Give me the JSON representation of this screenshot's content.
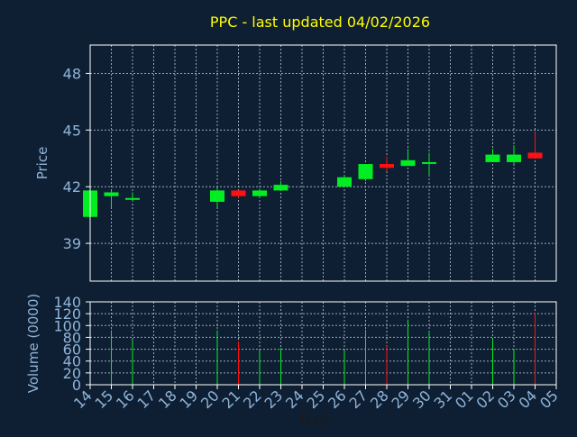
{
  "colors": {
    "background": "#0f1f33",
    "title": "#ffff00",
    "axis_text": "#8fb4d9",
    "frame": "#ffffff",
    "grid": "#9aa8b8",
    "up": "#00ee22",
    "down": "#ff1111"
  },
  "chart_data": [
    {
      "type": "candlestick",
      "title": "PPC - last updated 04/02/2026",
      "ylabel": "Price",
      "xlabel": "",
      "ylim": [
        37.0,
        49.5
      ],
      "yticks": [
        "39",
        "42",
        "45",
        "48"
      ],
      "grid": true,
      "categories": [
        "14",
        "15",
        "16",
        "17",
        "18",
        "19",
        "20",
        "21",
        "22",
        "23",
        "24",
        "25",
        "26",
        "27",
        "28",
        "29",
        "30",
        "31",
        "01",
        "02",
        "03",
        "04",
        "05"
      ],
      "candles": [
        {
          "day": "14",
          "open": 40.4,
          "close": 41.8,
          "high": 41.8,
          "low": 40.4
        },
        {
          "day": "15",
          "open": 41.5,
          "close": 41.7,
          "high": 41.8,
          "low": 40.9
        },
        {
          "day": "16",
          "open": 41.4,
          "close": 41.4,
          "high": 41.7,
          "low": 41.2
        },
        {
          "day": "20",
          "open": 41.2,
          "close": 41.8,
          "high": 42.0,
          "low": 40.9
        },
        {
          "day": "21",
          "open": 41.8,
          "close": 41.5,
          "high": 41.8,
          "low": 41.4
        },
        {
          "day": "22",
          "open": 41.5,
          "close": 41.8,
          "high": 41.9,
          "low": 41.4
        },
        {
          "day": "23",
          "open": 41.8,
          "close": 42.1,
          "high": 42.3,
          "low": 41.8
        },
        {
          "day": "26",
          "open": 42.0,
          "close": 42.5,
          "high": 42.6,
          "low": 42.0
        },
        {
          "day": "27",
          "open": 42.4,
          "close": 43.2,
          "high": 43.2,
          "low": 42.3
        },
        {
          "day": "28",
          "open": 43.2,
          "close": 43.0,
          "high": 43.6,
          "low": 42.8
        },
        {
          "day": "29",
          "open": 43.1,
          "close": 43.4,
          "high": 44.0,
          "low": 43.1
        },
        {
          "day": "30",
          "open": 43.3,
          "close": 43.3,
          "high": 43.8,
          "low": 42.6
        },
        {
          "day": "02",
          "open": 43.3,
          "close": 43.7,
          "high": 44.0,
          "low": 43.3
        },
        {
          "day": "03",
          "open": 43.3,
          "close": 43.7,
          "high": 44.2,
          "low": 43.2
        },
        {
          "day": "04",
          "open": 43.8,
          "close": 43.5,
          "high": 44.9,
          "low": 43.5
        }
      ]
    },
    {
      "type": "bar",
      "ylabel": "Volume (0000)",
      "xlabel": "Day",
      "ylim": [
        0,
        140
      ],
      "yticks": [
        "0",
        "20",
        "40",
        "60",
        "80",
        "100",
        "120",
        "140"
      ],
      "grid": true,
      "categories": [
        "14",
        "15",
        "16",
        "17",
        "18",
        "19",
        "20",
        "21",
        "22",
        "23",
        "24",
        "25",
        "26",
        "27",
        "28",
        "29",
        "30",
        "31",
        "01",
        "02",
        "03",
        "04",
        "05"
      ],
      "bars": [
        {
          "day": "14",
          "value": 0,
          "dir": "up"
        },
        {
          "day": "15",
          "value": 92,
          "dir": "up"
        },
        {
          "day": "16",
          "value": 76,
          "dir": "up"
        },
        {
          "day": "20",
          "value": 92,
          "dir": "up"
        },
        {
          "day": "21",
          "value": 73,
          "dir": "down"
        },
        {
          "day": "22",
          "value": 58,
          "dir": "up"
        },
        {
          "day": "23",
          "value": 62,
          "dir": "up"
        },
        {
          "day": "26",
          "value": 58,
          "dir": "up"
        },
        {
          "day": "27",
          "value": 93,
          "dir": "up"
        },
        {
          "day": "28",
          "value": 66,
          "dir": "down"
        },
        {
          "day": "29",
          "value": 110,
          "dir": "up"
        },
        {
          "day": "30",
          "value": 91,
          "dir": "up"
        },
        {
          "day": "02",
          "value": 78,
          "dir": "up"
        },
        {
          "day": "03",
          "value": 60,
          "dir": "up"
        },
        {
          "day": "04",
          "value": 122,
          "dir": "down"
        }
      ]
    }
  ]
}
